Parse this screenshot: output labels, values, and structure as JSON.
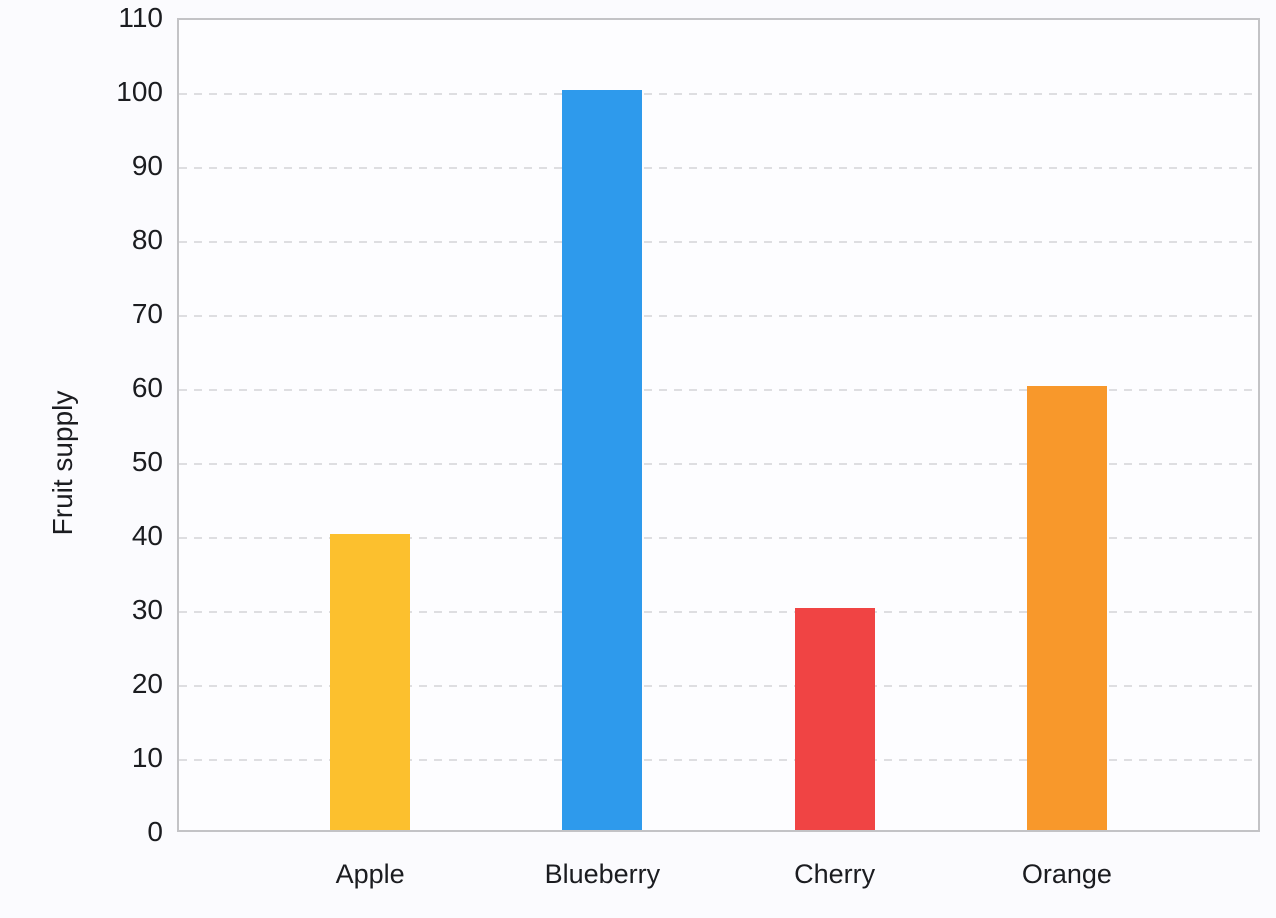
{
  "chart_data": {
    "type": "bar",
    "title": "",
    "categories": [
      "Apple",
      "Blueberry",
      "Cherry",
      "Orange"
    ],
    "values": [
      40,
      100,
      30,
      60
    ],
    "bar_colors": [
      "#fcc02e",
      "#2e9aec",
      "#f04444",
      "#f8982b"
    ],
    "xlabel": "",
    "ylabel": "Fruit supply",
    "ylim": [
      0,
      110
    ],
    "yticks": [
      0,
      10,
      20,
      30,
      40,
      50,
      60,
      70,
      80,
      90,
      100,
      110
    ],
    "grid": "horizontal-dashed",
    "legend": "none",
    "plot_background": "#fdfdff",
    "page_background": "#fbfbfe",
    "frame_color": "#c3c3c6",
    "gridline_color": "#dedee1",
    "text_color": "#1b1c20"
  }
}
